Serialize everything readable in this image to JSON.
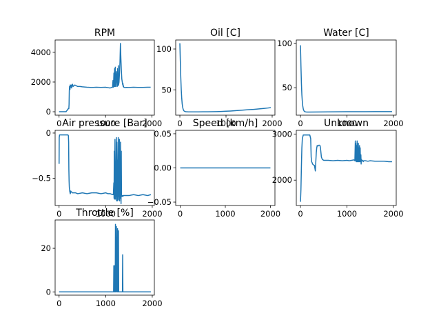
{
  "figure": {
    "line_color": "#1f77b4",
    "axes_color": "#000000",
    "background": "#ffffff"
  },
  "chart_data": [
    {
      "type": "line",
      "title": "RPM",
      "xlim": [
        -85,
        2050
      ],
      "ylim": [
        -230,
        4830
      ],
      "xticks": [
        0,
        1000,
        2000
      ],
      "yticks": [
        0,
        2000,
        4000
      ],
      "series": [
        {
          "x": [
            0,
            150,
            160,
            175,
            185,
            195,
            200,
            210,
            215,
            220,
            225,
            235,
            240,
            250,
            260,
            270,
            275,
            290,
            300,
            340,
            370,
            400,
            450,
            500,
            600,
            700,
            800,
            900,
            1000,
            1050,
            1100,
            1150,
            1160,
            1170,
            1180,
            1185,
            1195,
            1200,
            1210,
            1220,
            1230,
            1240,
            1250,
            1260,
            1265,
            1270,
            1275,
            1280,
            1290,
            1300,
            1310,
            1320,
            1330,
            1340,
            1350,
            1360,
            1370,
            1375,
            1380,
            1385,
            1390,
            1400,
            1420,
            1450,
            1500,
            1600,
            1700,
            1800,
            1900,
            1970
          ],
          "y": [
            0,
            0,
            50,
            100,
            150,
            200,
            200,
            210,
            500,
            1400,
            1700,
            1500,
            1800,
            1650,
            1800,
            1600,
            1750,
            1850,
            1700,
            1800,
            1750,
            1700,
            1700,
            1680,
            1650,
            1630,
            1650,
            1640,
            1650,
            1620,
            1600,
            1650,
            2100,
            1650,
            2600,
            1700,
            2900,
            1700,
            3000,
            1700,
            2300,
            2700,
            1700,
            2900,
            1750,
            2200,
            3100,
            1800,
            2000,
            2600,
            3300,
            4600,
            3600,
            2800,
            2200,
            2000,
            1800,
            1900,
            1700,
            1750,
            1650,
            1650,
            1620,
            1640,
            1630,
            1650,
            1640,
            1640,
            1650,
            1650
          ]
        }
      ]
    },
    {
      "type": "line",
      "title": "Oil [C]",
      "xlim": [
        -90,
        2060
      ],
      "ylim": [
        19,
        111
      ],
      "xticks": [
        0,
        1000,
        2000
      ],
      "yticks": [
        50,
        100
      ],
      "series": [
        {
          "x": [
            0,
            10,
            20,
            30,
            40,
            50,
            60,
            70,
            80,
            90,
            100,
            110,
            120,
            130,
            140,
            160,
            180,
            200,
            250,
            300,
            400,
            500,
            600,
            700,
            800,
            900,
            1000,
            1100,
            1200,
            1300,
            1400,
            1500,
            1600,
            1700,
            1800,
            1900,
            1970
          ],
          "y": [
            107,
            85,
            65,
            50,
            40,
            33,
            29,
            26.5,
            25,
            24.2,
            23.8,
            23.5,
            23.3,
            23.2,
            23.1,
            23.1,
            23.0,
            23.0,
            23.0,
            23.0,
            23.0,
            23.1,
            23.1,
            23.2,
            23.3,
            23.5,
            23.8,
            24.1,
            24.5,
            24.9,
            25.3,
            25.7,
            26.1,
            26.6,
            27.1,
            27.7,
            28.2
          ]
        }
      ]
    },
    {
      "type": "line",
      "title": "Water [C]",
      "xlim": [
        -90,
        2060
      ],
      "ylim": [
        19,
        104
      ],
      "xticks": [
        0,
        1000,
        2000
      ],
      "yticks": [
        50,
        100
      ],
      "series": [
        {
          "x": [
            0,
            10,
            20,
            30,
            40,
            50,
            60,
            70,
            80,
            90,
            100,
            120,
            140,
            160,
            200,
            400,
            600,
            800,
            1000,
            1200,
            1400,
            1600,
            1800,
            1970
          ],
          "y": [
            98,
            75,
            55,
            42,
            34,
            29,
            26,
            24.5,
            23.5,
            23,
            22.8,
            22.6,
            22.5,
            22.5,
            22.5,
            22.6,
            22.7,
            22.8,
            22.9,
            22.9,
            22.9,
            23,
            23,
            23
          ]
        }
      ]
    },
    {
      "type": "line",
      "title": "Air pressure [Bar]",
      "xlim": [
        -85,
        2045
      ],
      "ylim": [
        -0.8,
        0.03
      ],
      "xticks": [
        0,
        1000,
        2000
      ],
      "yticks": [
        -0.5,
        0.0
      ],
      "series": [
        {
          "x": [
            0,
            3,
            10,
            20,
            40,
            60,
            100,
            140,
            170,
            180,
            190,
            200,
            205,
            210,
            215,
            220,
            225,
            228,
            232,
            236,
            240,
            245,
            250,
            260,
            270,
            280,
            300,
            350,
            400,
            500,
            600,
            700,
            800,
            900,
            1000,
            1050,
            1100,
            1150,
            1165,
            1175,
            1180,
            1185,
            1190,
            1200,
            1210,
            1215,
            1220,
            1230,
            1235,
            1240,
            1250,
            1255,
            1260,
            1270,
            1275,
            1280,
            1290,
            1295,
            1300,
            1310,
            1315,
            1320,
            1330,
            1335,
            1340,
            1350,
            1360,
            1370,
            1380,
            1400,
            1450,
            1500,
            1600,
            1700,
            1800,
            1900,
            1970
          ],
          "y": [
            -0.34,
            -0.05,
            -0.02,
            -0.02,
            -0.02,
            -0.02,
            -0.02,
            -0.02,
            -0.02,
            -0.02,
            -0.02,
            -0.03,
            -0.1,
            -0.4,
            -0.53,
            -0.6,
            -0.62,
            -0.64,
            -0.65,
            -0.66,
            -0.67,
            -0.66,
            -0.64,
            -0.65,
            -0.65,
            -0.66,
            -0.66,
            -0.66,
            -0.67,
            -0.66,
            -0.67,
            -0.66,
            -0.66,
            -0.67,
            -0.66,
            -0.67,
            -0.67,
            -0.68,
            -0.68,
            -0.55,
            -0.72,
            -0.2,
            -0.73,
            -0.07,
            -0.73,
            -0.5,
            -0.7,
            -0.05,
            -0.75,
            -0.1,
            -0.75,
            -0.3,
            -0.7,
            -0.05,
            -0.74,
            -0.4,
            -0.72,
            -0.07,
            -0.75,
            -0.3,
            -0.72,
            -0.1,
            -0.78,
            -0.2,
            -0.7,
            -0.7,
            -0.69,
            -0.7,
            -0.69,
            -0.69,
            -0.69,
            -0.69,
            -0.68,
            -0.69,
            -0.68,
            -0.69,
            -0.68
          ]
        }
      ]
    },
    {
      "type": "line",
      "title": "Speed [km/h]",
      "xlim": [
        -100,
        2100
      ],
      "ylim": [
        -0.055,
        0.055
      ],
      "xticks": [
        0,
        1000,
        2000
      ],
      "yticks": [
        -0.05,
        0.0,
        0.05
      ],
      "ytick_labels": [
        "−0.05",
        "0.00",
        "0.05"
      ],
      "series": [
        {
          "x": [
            0,
            2000
          ],
          "y": [
            0,
            0
          ]
        }
      ]
    },
    {
      "type": "line",
      "title": "Unknown",
      "xlim": [
        -90,
        2060
      ],
      "ylim": [
        1450,
        3080
      ],
      "xticks": [
        0,
        1000,
        2000
      ],
      "yticks": [
        2000,
        3000
      ],
      "series": [
        {
          "x": [
            0,
            10,
            20,
            30,
            40,
            60,
            80,
            100,
            150,
            200,
            220,
            230,
            240,
            250,
            260,
            280,
            300,
            320,
            340,
            350,
            360,
            380,
            400,
            420,
            430,
            440,
            450,
            470,
            500,
            600,
            700,
            800,
            900,
            1000,
            1050,
            1100,
            1150,
            1170,
            1180,
            1185,
            1190,
            1200,
            1205,
            1210,
            1220,
            1225,
            1230,
            1240,
            1245,
            1250,
            1260,
            1265,
            1270,
            1280,
            1285,
            1290,
            1300,
            1305,
            1310,
            1320,
            1330,
            1340,
            1350,
            1360,
            1380,
            1400,
            1450,
            1500,
            1600,
            1700,
            1800,
            1900,
            1970
          ],
          "y": [
            1530,
            1800,
            2300,
            2700,
            2900,
            2980,
            2980,
            2980,
            2980,
            2980,
            2900,
            2500,
            2400,
            2380,
            2350,
            2330,
            2320,
            2200,
            2600,
            2700,
            2750,
            2740,
            2760,
            2750,
            2700,
            2600,
            2500,
            2450,
            2430,
            2430,
            2420,
            2430,
            2420,
            2430,
            2420,
            2430,
            2440,
            2420,
            2850,
            2420,
            2800,
            2400,
            2750,
            2400,
            2850,
            2400,
            2700,
            2400,
            2800,
            2400,
            2700,
            2400,
            2750,
            2400,
            2700,
            2400,
            2550,
            2350,
            2450,
            2420,
            2430,
            2420,
            2400,
            2420,
            2420,
            2420,
            2410,
            2420,
            2410,
            2410,
            2410,
            2400,
            2400
          ]
        }
      ]
    },
    {
      "type": "line",
      "title": "Throttle [%]",
      "xlim": [
        -85,
        2045
      ],
      "ylim": [
        -1.5,
        33
      ],
      "xticks": [
        0,
        1000,
        2000
      ],
      "yticks": [
        0,
        20
      ],
      "series": [
        {
          "x": [
            0,
            1100,
            1170,
            1175,
            1180,
            1185,
            1190,
            1195,
            1200,
            1205,
            1210,
            1215,
            1220,
            1230,
            1240,
            1245,
            1250,
            1255,
            1260,
            1265,
            1270,
            1275,
            1280,
            1290,
            1300,
            1310,
            1320,
            1330,
            1340,
            1350,
            1360,
            1365,
            1370,
            1380,
            1400,
            1500,
            1600,
            1700,
            1800,
            1900,
            1970
          ],
          "y": [
            0,
            0,
            0,
            12,
            12,
            0,
            0,
            12,
            0,
            0,
            31,
            20,
            0,
            30,
            0,
            25,
            0,
            29,
            0,
            22,
            0,
            28,
            0,
            0,
            0,
            0,
            0,
            0,
            0,
            0,
            0,
            17,
            0,
            0,
            0,
            0,
            0,
            0,
            0,
            0,
            0
          ]
        }
      ]
    }
  ]
}
